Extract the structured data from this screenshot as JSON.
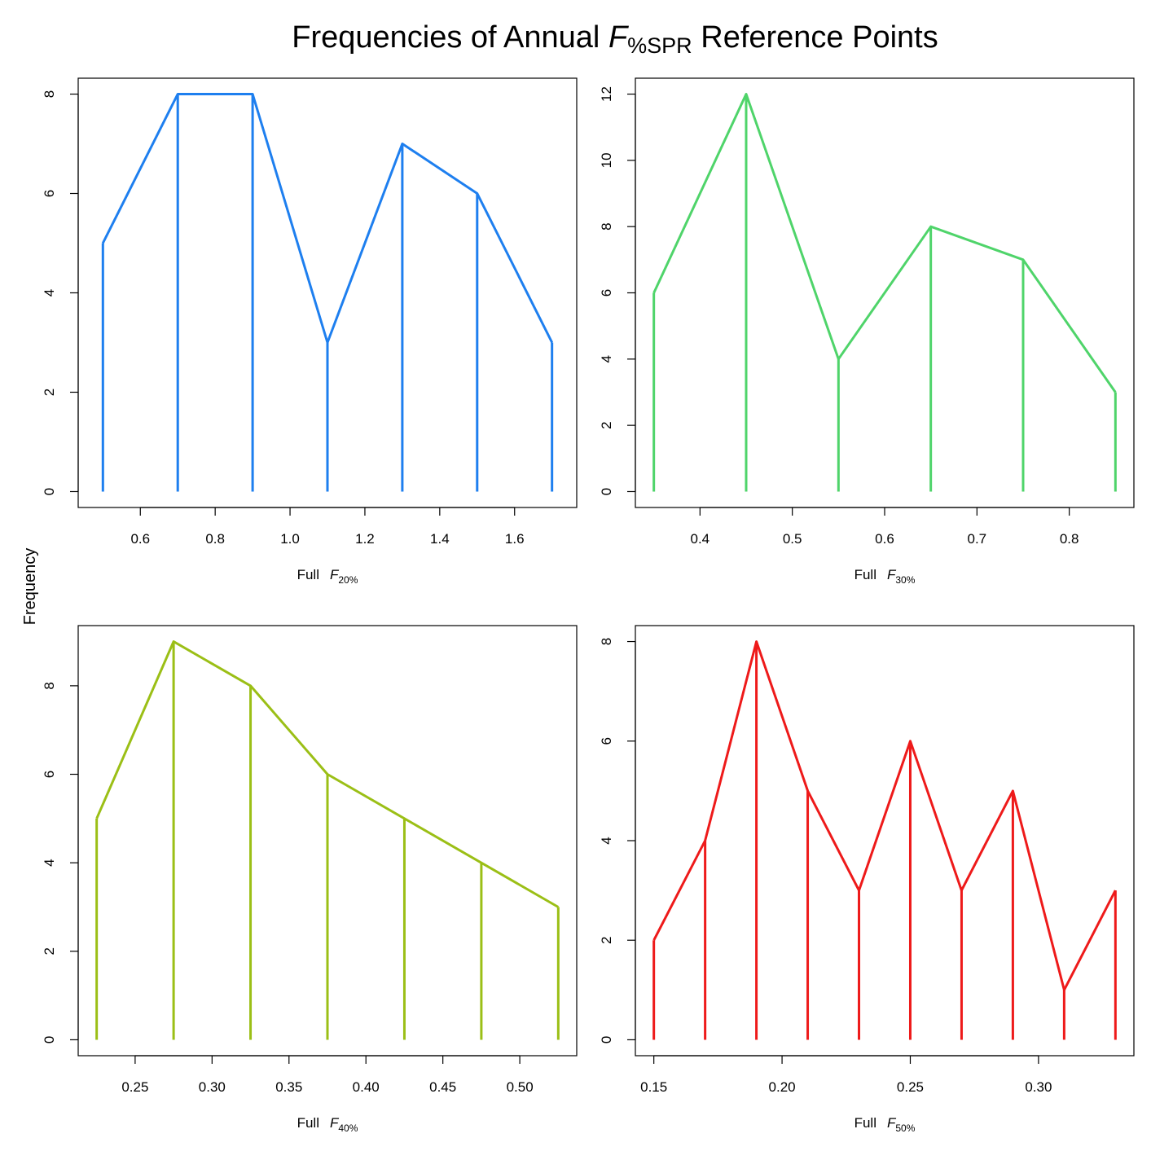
{
  "figure": {
    "title_main": "Frequencies of Annual ",
    "title_var": "F",
    "title_sub": "%SPR",
    "title_tail": " Reference Points",
    "ylabel": "Frequency"
  },
  "chart_data": [
    {
      "type": "line",
      "subtype": "frequency-polygon-with-drop-lines",
      "xlabel_prefix": "Full",
      "xlabel_var": "F",
      "xlabel_sub": "20%",
      "color": "#1E7FEF",
      "x": [
        0.5,
        0.7,
        0.9,
        1.1,
        1.3,
        1.5,
        1.7
      ],
      "y": [
        5,
        8,
        8,
        3,
        7,
        6,
        3
      ],
      "xlim": [
        0.434,
        1.766
      ],
      "ylim": [
        -0.32,
        8.32
      ],
      "xticks": [
        0.6,
        0.8,
        1.0,
        1.2,
        1.4,
        1.6
      ],
      "xtick_labels": [
        "0.6",
        "0.8",
        "1.0",
        "1.2",
        "1.4",
        "1.6"
      ],
      "yticks": [
        0,
        2,
        4,
        6,
        8
      ],
      "ytick_labels": [
        "0",
        "2",
        "4",
        "6",
        "8"
      ],
      "grid": false
    },
    {
      "type": "line",
      "subtype": "frequency-polygon-with-drop-lines",
      "xlabel_prefix": "Full",
      "xlabel_var": "F",
      "xlabel_sub": "30%",
      "color": "#4FD46A",
      "x": [
        0.35,
        0.45,
        0.55,
        0.65,
        0.75,
        0.85
      ],
      "y": [
        6,
        12,
        4,
        8,
        7,
        3
      ],
      "xlim": [
        0.33,
        0.87
      ],
      "ylim": [
        -0.48,
        12.48
      ],
      "xticks": [
        0.4,
        0.5,
        0.6,
        0.7,
        0.8
      ],
      "xtick_labels": [
        "0.4",
        "0.5",
        "0.6",
        "0.7",
        "0.8"
      ],
      "yticks": [
        0,
        2,
        4,
        6,
        8,
        10,
        12
      ],
      "ytick_labels": [
        "0",
        "2",
        "4",
        "6",
        "8",
        "10",
        "12"
      ],
      "grid": false
    },
    {
      "type": "line",
      "subtype": "frequency-polygon-with-drop-lines",
      "xlabel_prefix": "Full",
      "xlabel_var": "F",
      "xlabel_sub": "40%",
      "color": "#9BBF16",
      "x": [
        0.225,
        0.275,
        0.325,
        0.375,
        0.425,
        0.475,
        0.525
      ],
      "y": [
        5,
        9,
        8,
        6,
        5,
        4,
        3
      ],
      "xlim": [
        0.213,
        0.537
      ],
      "ylim": [
        -0.36,
        9.36
      ],
      "xticks": [
        0.25,
        0.3,
        0.35,
        0.4,
        0.45,
        0.5
      ],
      "xtick_labels": [
        "0.25",
        "0.30",
        "0.35",
        "0.40",
        "0.45",
        "0.50"
      ],
      "yticks": [
        0,
        2,
        4,
        6,
        8
      ],
      "ytick_labels": [
        "0",
        "2",
        "4",
        "6",
        "8"
      ],
      "grid": false
    },
    {
      "type": "line",
      "subtype": "frequency-polygon-with-drop-lines",
      "xlabel_prefix": "Full",
      "xlabel_var": "F",
      "xlabel_sub": "50%",
      "color": "#EE1A1A",
      "x": [
        0.15,
        0.17,
        0.19,
        0.21,
        0.23,
        0.25,
        0.27,
        0.29,
        0.31,
        0.33
      ],
      "y": [
        2,
        4,
        8,
        5,
        3,
        6,
        3,
        5,
        1,
        3
      ],
      "xlim": [
        0.1428,
        0.3372
      ],
      "ylim": [
        -0.32,
        8.32
      ],
      "xticks": [
        0.15,
        0.2,
        0.25,
        0.3
      ],
      "xtick_labels": [
        "0.15",
        "0.20",
        "0.25",
        "0.30"
      ],
      "yticks": [
        0,
        2,
        4,
        6,
        8
      ],
      "ytick_labels": [
        "0",
        "2",
        "4",
        "6",
        "8"
      ],
      "grid": false
    }
  ]
}
